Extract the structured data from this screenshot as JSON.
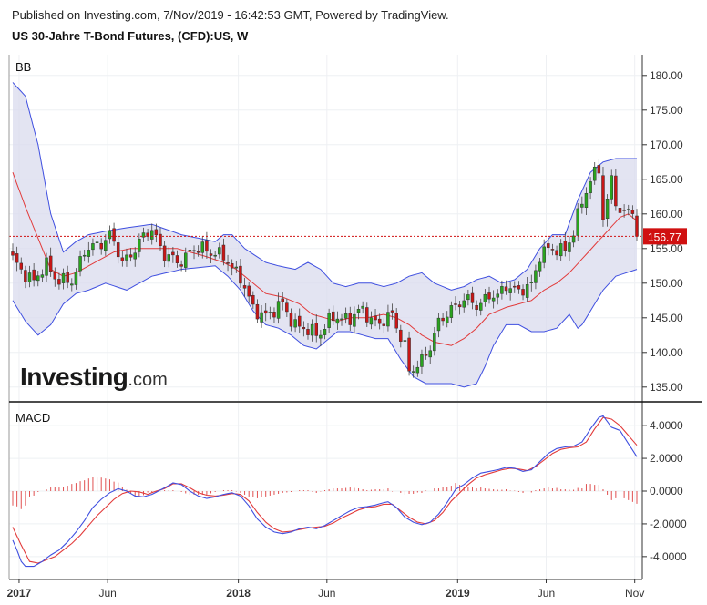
{
  "header": {
    "published": "Published on Investing.com, 7/Nov/2019 - 16:42:53 GMT, Powered by TradingView.",
    "title": "US 30-Jahre T-Bond Futures, (CFD):US, W"
  },
  "watermark": {
    "brand": "Investing",
    "suffix": ".com"
  },
  "chart_data": [
    {
      "type": "candlestick",
      "panel_label": "BB",
      "indicator": "Bollinger Bands",
      "interval": "W",
      "last_price": 156.77,
      "last_price_label": "156.77",
      "y_ticks": [
        "180.00",
        "175.00",
        "170.00",
        "165.00",
        "160.00",
        "155.00",
        "150.00",
        "145.00",
        "140.00",
        "135.00"
      ],
      "ylim": [
        133,
        183
      ],
      "x_ticks": [
        {
          "label": "2017",
          "t": 1.5,
          "bold": true
        },
        {
          "label": "Jun",
          "t": 22.5,
          "bold": false
        },
        {
          "label": "2018",
          "t": 53.5,
          "bold": true
        },
        {
          "label": "Jun",
          "t": 74.5,
          "bold": false
        },
        {
          "label": "2019",
          "t": 105.5,
          "bold": true
        },
        {
          "label": "Jun",
          "t": 126.5,
          "bold": false
        },
        {
          "label": "Nov",
          "t": 147.5,
          "bold": false
        }
      ],
      "close_anchors": [
        [
          0,
          153.5
        ],
        [
          5,
          150
        ],
        [
          8,
          153
        ],
        [
          11,
          150
        ],
        [
          14,
          150.5
        ],
        [
          17,
          154.5
        ],
        [
          20,
          155.5
        ],
        [
          23,
          157
        ],
        [
          26,
          153
        ],
        [
          29,
          155
        ],
        [
          33,
          158
        ],
        [
          36,
          154
        ],
        [
          39,
          153
        ],
        [
          42,
          154.5
        ],
        [
          45,
          155
        ],
        [
          48,
          154.5
        ],
        [
          51,
          153
        ],
        [
          54,
          151
        ],
        [
          57,
          146
        ],
        [
          61,
          145.5
        ],
        [
          64,
          147
        ],
        [
          67,
          144
        ],
        [
          70,
          143
        ],
        [
          73,
          143
        ],
        [
          76,
          145
        ],
        [
          80,
          145
        ],
        [
          83,
          146
        ],
        [
          87,
          144
        ],
        [
          90,
          145.5
        ],
        [
          93,
          141
        ],
        [
          94,
          137
        ],
        [
          96,
          138
        ],
        [
          99,
          141
        ],
        [
          101,
          144
        ],
        [
          104,
          146.5
        ],
        [
          107,
          147.5
        ],
        [
          110,
          147
        ],
        [
          113,
          148
        ],
        [
          115,
          148
        ],
        [
          117,
          150
        ],
        [
          120,
          148.5
        ],
        [
          123,
          150
        ],
        [
          125,
          154
        ],
        [
          128,
          155
        ],
        [
          131,
          155
        ],
        [
          133,
          157
        ],
        [
          135,
          162
        ],
        [
          137,
          165
        ],
        [
          139,
          166.5
        ],
        [
          140,
          159
        ],
        [
          142,
          165
        ],
        [
          144,
          160
        ],
        [
          146,
          160
        ],
        [
          147,
          161
        ],
        [
          148,
          156.77
        ]
      ],
      "bb_upper_anchors": [
        [
          0,
          179
        ],
        [
          3,
          177
        ],
        [
          6,
          170
        ],
        [
          9,
          160
        ],
        [
          12,
          154.5
        ],
        [
          15,
          156
        ],
        [
          18,
          157
        ],
        [
          22,
          157.5
        ],
        [
          27,
          158
        ],
        [
          33,
          158.5
        ],
        [
          40,
          157
        ],
        [
          48,
          156
        ],
        [
          50,
          157
        ],
        [
          52,
          157
        ],
        [
          55,
          155
        ],
        [
          60,
          153
        ],
        [
          63,
          152.5
        ],
        [
          67,
          152
        ],
        [
          70,
          153
        ],
        [
          73,
          152
        ],
        [
          76,
          150
        ],
        [
          79,
          149.5
        ],
        [
          82,
          150
        ],
        [
          85,
          150
        ],
        [
          88,
          149.5
        ],
        [
          91,
          150
        ],
        [
          94,
          151
        ],
        [
          97,
          151.5
        ],
        [
          100,
          150
        ],
        [
          104,
          149
        ],
        [
          107,
          149.5
        ],
        [
          110,
          150.5
        ],
        [
          113,
          151
        ],
        [
          116,
          150
        ],
        [
          119,
          150.5
        ],
        [
          122,
          152
        ],
        [
          125,
          155
        ],
        [
          128,
          157
        ],
        [
          131,
          157
        ],
        [
          134,
          162
        ],
        [
          137,
          166
        ],
        [
          140,
          167.5
        ],
        [
          143,
          168
        ],
        [
          148,
          168
        ]
      ],
      "bb_lower_anchors": [
        [
          0,
          147.5
        ],
        [
          3,
          144.5
        ],
        [
          6,
          142.5
        ],
        [
          9,
          144
        ],
        [
          12,
          147
        ],
        [
          15,
          148.5
        ],
        [
          18,
          149
        ],
        [
          22,
          150
        ],
        [
          27,
          149
        ],
        [
          33,
          151
        ],
        [
          40,
          152
        ],
        [
          48,
          152.5
        ],
        [
          51,
          151
        ],
        [
          54,
          149
        ],
        [
          57,
          146
        ],
        [
          60,
          144
        ],
        [
          63,
          143.5
        ],
        [
          66,
          142.5
        ],
        [
          69,
          141
        ],
        [
          72,
          140.5
        ],
        [
          74,
          141.5
        ],
        [
          77,
          143
        ],
        [
          80,
          143
        ],
        [
          83,
          142.5
        ],
        [
          86,
          142
        ],
        [
          89,
          142
        ],
        [
          92,
          139
        ],
        [
          95,
          136.5
        ],
        [
          98,
          135.5
        ],
        [
          101,
          135.5
        ],
        [
          104,
          135.5
        ],
        [
          107,
          135
        ],
        [
          110,
          135.5
        ],
        [
          112,
          138
        ],
        [
          114,
          141
        ],
        [
          117,
          144
        ],
        [
          120,
          144
        ],
        [
          123,
          143
        ],
        [
          126,
          143
        ],
        [
          129,
          143.5
        ],
        [
          132,
          145.5
        ],
        [
          134,
          143.5
        ],
        [
          135,
          144
        ],
        [
          137,
          146
        ],
        [
          140,
          149
        ],
        [
          143,
          151
        ],
        [
          148,
          152
        ]
      ],
      "bb_middle_anchors": [
        [
          0,
          166
        ],
        [
          3,
          161
        ],
        [
          6,
          156.5
        ],
        [
          9,
          152
        ],
        [
          12,
          151
        ],
        [
          15,
          151.5
        ],
        [
          18,
          152.5
        ],
        [
          21,
          153.5
        ],
        [
          24,
          154.5
        ],
        [
          28,
          155
        ],
        [
          33,
          155
        ],
        [
          39,
          155
        ],
        [
          45,
          154
        ],
        [
          50,
          153
        ],
        [
          53,
          152
        ],
        [
          57,
          150
        ],
        [
          60,
          148.5
        ],
        [
          64,
          148
        ],
        [
          68,
          147
        ],
        [
          71,
          145.5
        ],
        [
          74,
          145
        ],
        [
          77,
          144.5
        ],
        [
          80,
          145
        ],
        [
          84,
          145
        ],
        [
          88,
          145.5
        ],
        [
          91,
          145
        ],
        [
          94,
          144
        ],
        [
          97,
          142.5
        ],
        [
          100,
          141.5
        ],
        [
          104,
          141
        ],
        [
          107,
          142
        ],
        [
          110,
          143.5
        ],
        [
          113,
          145.5
        ],
        [
          117,
          146.5
        ],
        [
          120,
          147
        ],
        [
          123,
          147.5
        ],
        [
          126,
          149
        ],
        [
          129,
          150
        ],
        [
          132,
          151.5
        ],
        [
          135,
          153.5
        ],
        [
          138,
          155.5
        ],
        [
          141,
          157.5
        ],
        [
          144,
          159.5
        ],
        [
          146,
          160
        ],
        [
          148,
          159
        ]
      ],
      "price_line": 156.77
    },
    {
      "type": "macd",
      "panel_label": "MACD",
      "y_ticks": [
        "4.0000",
        "2.0000",
        "0.0000",
        "-2.0000",
        "-4.0000"
      ],
      "ylim": [
        -5.4,
        5.4
      ],
      "macd_anchors": [
        [
          0,
          -3
        ],
        [
          1,
          -3.6
        ],
        [
          2,
          -4.3
        ],
        [
          3,
          -4.6
        ],
        [
          5,
          -4.6
        ],
        [
          7,
          -4.3
        ],
        [
          9,
          -3.9
        ],
        [
          11,
          -3.6
        ],
        [
          13,
          -3.1
        ],
        [
          15,
          -2.5
        ],
        [
          17,
          -1.8
        ],
        [
          19,
          -1.0
        ],
        [
          21,
          -0.5
        ],
        [
          23,
          -0.1
        ],
        [
          25,
          0.15
        ],
        [
          27,
          0
        ],
        [
          29,
          -0.3
        ],
        [
          31,
          -0.35
        ],
        [
          33,
          -0.2
        ],
        [
          36,
          0.2
        ],
        [
          38,
          0.5
        ],
        [
          40,
          0.4
        ],
        [
          42,
          0
        ],
        [
          44,
          -0.3
        ],
        [
          46,
          -0.45
        ],
        [
          48,
          -0.35
        ],
        [
          50,
          -0.2
        ],
        [
          52,
          -0.1
        ],
        [
          54,
          -0.3
        ],
        [
          56,
          -0.9
        ],
        [
          58,
          -1.7
        ],
        [
          60,
          -2.2
        ],
        [
          62,
          -2.5
        ],
        [
          64,
          -2.6
        ],
        [
          66,
          -2.5
        ],
        [
          68,
          -2.3
        ],
        [
          70,
          -2.2
        ],
        [
          72,
          -2.3
        ],
        [
          74,
          -2.1
        ],
        [
          76,
          -1.8
        ],
        [
          78,
          -1.5
        ],
        [
          80,
          -1.2
        ],
        [
          82,
          -1.0
        ],
        [
          84,
          -0.95
        ],
        [
          86,
          -0.85
        ],
        [
          88,
          -0.7
        ],
        [
          89,
          -0.65
        ],
        [
          91,
          -1.0
        ],
        [
          93,
          -1.6
        ],
        [
          95,
          -1.9
        ],
        [
          97,
          -2.05
        ],
        [
          99,
          -1.9
        ],
        [
          101,
          -1.4
        ],
        [
          103,
          -0.7
        ],
        [
          105,
          0.1
        ],
        [
          107,
          0.4
        ],
        [
          109,
          0.8
        ],
        [
          111,
          1.1
        ],
        [
          113,
          1.2
        ],
        [
          115,
          1.3
        ],
        [
          117,
          1.45
        ],
        [
          119,
          1.4
        ],
        [
          121,
          1.2
        ],
        [
          123,
          1.3
        ],
        [
          125,
          1.8
        ],
        [
          127,
          2.3
        ],
        [
          129,
          2.6
        ],
        [
          131,
          2.7
        ],
        [
          133,
          2.75
        ],
        [
          135,
          3.0
        ],
        [
          137,
          3.8
        ],
        [
          139,
          4.5
        ],
        [
          140,
          4.6
        ],
        [
          142,
          3.9
        ],
        [
          144,
          3.7
        ],
        [
          146,
          2.9
        ],
        [
          148,
          2.1
        ]
      ],
      "signal_anchors": [
        [
          0,
          -2.2
        ],
        [
          2,
          -3.3
        ],
        [
          4,
          -4.3
        ],
        [
          6,
          -4.4
        ],
        [
          8,
          -4.2
        ],
        [
          10,
          -4.0
        ],
        [
          12,
          -3.6
        ],
        [
          14,
          -3.2
        ],
        [
          16,
          -2.7
        ],
        [
          18,
          -2.1
        ],
        [
          20,
          -1.5
        ],
        [
          22,
          -1.0
        ],
        [
          24,
          -0.5
        ],
        [
          26,
          -0.15
        ],
        [
          28,
          0
        ],
        [
          30,
          -0.05
        ],
        [
          32,
          -0.2
        ],
        [
          34,
          0
        ],
        [
          36,
          0.15
        ],
        [
          38,
          0.45
        ],
        [
          40,
          0.45
        ],
        [
          42,
          0.2
        ],
        [
          44,
          -0.1
        ],
        [
          46,
          -0.25
        ],
        [
          48,
          -0.3
        ],
        [
          50,
          -0.25
        ],
        [
          52,
          -0.15
        ],
        [
          54,
          -0.2
        ],
        [
          56,
          -0.6
        ],
        [
          58,
          -1.3
        ],
        [
          60,
          -1.9
        ],
        [
          62,
          -2.3
        ],
        [
          64,
          -2.5
        ],
        [
          66,
          -2.45
        ],
        [
          68,
          -2.35
        ],
        [
          70,
          -2.25
        ],
        [
          72,
          -2.2
        ],
        [
          74,
          -2.15
        ],
        [
          76,
          -1.95
        ],
        [
          78,
          -1.65
        ],
        [
          80,
          -1.4
        ],
        [
          82,
          -1.15
        ],
        [
          84,
          -1.0
        ],
        [
          86,
          -0.95
        ],
        [
          88,
          -0.8
        ],
        [
          90,
          -0.8
        ],
        [
          92,
          -1.2
        ],
        [
          94,
          -1.6
        ],
        [
          96,
          -1.9
        ],
        [
          98,
          -2.0
        ],
        [
          100,
          -1.8
        ],
        [
          102,
          -1.3
        ],
        [
          104,
          -0.6
        ],
        [
          106,
          -0.1
        ],
        [
          108,
          0.4
        ],
        [
          110,
          0.8
        ],
        [
          112,
          1.0
        ],
        [
          114,
          1.15
        ],
        [
          116,
          1.3
        ],
        [
          118,
          1.4
        ],
        [
          120,
          1.35
        ],
        [
          122,
          1.25
        ],
        [
          124,
          1.5
        ],
        [
          126,
          1.9
        ],
        [
          128,
          2.3
        ],
        [
          130,
          2.55
        ],
        [
          132,
          2.65
        ],
        [
          134,
          2.7
        ],
        [
          136,
          3.0
        ],
        [
          138,
          3.8
        ],
        [
          140,
          4.5
        ],
        [
          142,
          4.4
        ],
        [
          144,
          4.0
        ],
        [
          146,
          3.4
        ],
        [
          148,
          2.8
        ]
      ]
    }
  ]
}
